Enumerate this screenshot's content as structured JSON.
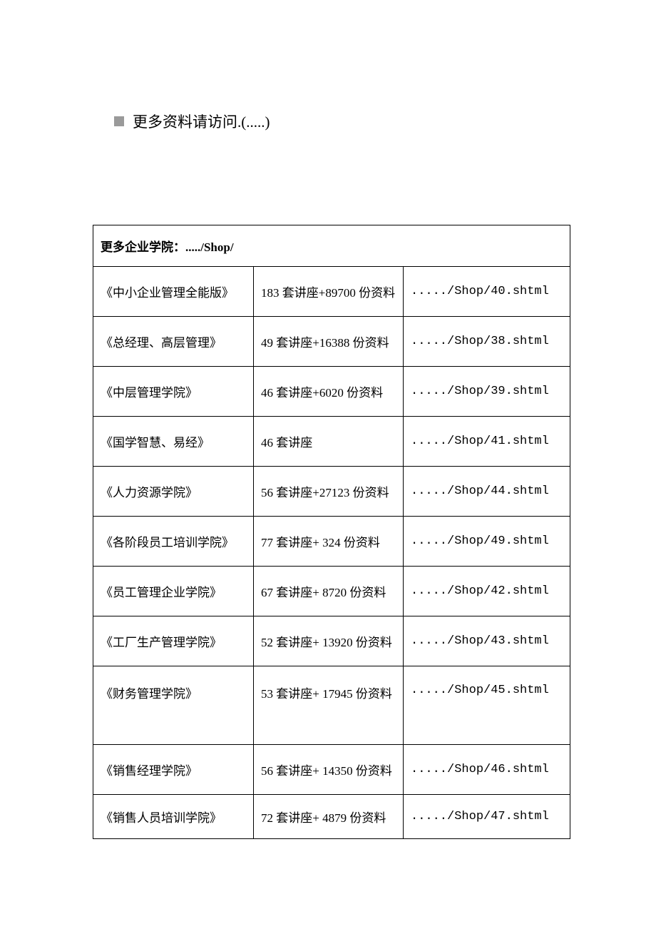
{
  "header": {
    "text": "更多资料请访问.(.....)"
  },
  "table": {
    "type": "table",
    "border_color": "#000000",
    "background_color": "#ffffff",
    "text_color": "#000000",
    "font_size_pt": 12,
    "header_label": "更多企业学院：...../Shop/",
    "columns": [
      "name",
      "content",
      "link"
    ],
    "rows": [
      {
        "name": "《中小企业管理全能版》",
        "content": "183 套讲座+89700 份资料",
        "link": "...../Shop/40.shtml"
      },
      {
        "name": "《总经理、高层管理》",
        "content": "49 套讲座+16388 份资料",
        "link": "...../Shop/38.shtml"
      },
      {
        "name": "《中层管理学院》",
        "content": "46 套讲座+6020 份资料",
        "link": "...../Shop/39.shtml"
      },
      {
        "name": "《国学智慧、易经》",
        "content": "46 套讲座",
        "link": "...../Shop/41.shtml"
      },
      {
        "name": "《人力资源学院》",
        "content": "56 套讲座+27123 份资料",
        "link": "...../Shop/44.shtml"
      },
      {
        "name": "《各阶段员工培训学院》",
        "content": "77 套讲座+ 324 份资料",
        "link": "...../Shop/49.shtml"
      },
      {
        "name": "《员工管理企业学院》",
        "content": "67 套讲座+ 8720 份资料",
        "link": "...../Shop/42.shtml"
      },
      {
        "name": "《工厂生产管理学院》",
        "content": "52 套讲座+ 13920 份资料",
        "link": "...../Shop/43.shtml"
      },
      {
        "name": "《财务管理学院》",
        "content": "53 套讲座+ 17945 份资料",
        "link": "...../Shop/45.shtml",
        "tall": true
      },
      {
        "name": "《销售经理学院》",
        "content": "56 套讲座+ 14350 份资料",
        "link": "...../Shop/46.shtml"
      },
      {
        "name": "《销售人员培训学院》",
        "content": "72 套讲座+ 4879 份资料",
        "link": "...../Shop/47.shtml",
        "short": true
      }
    ]
  },
  "colors": {
    "bullet": "#9a9a9a",
    "text": "#000000",
    "border": "#000000",
    "background": "#ffffff"
  }
}
